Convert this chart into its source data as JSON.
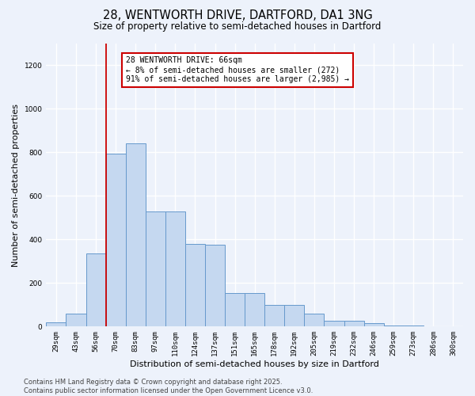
{
  "title_line1": "28, WENTWORTH DRIVE, DARTFORD, DA1 3NG",
  "title_line2": "Size of property relative to semi-detached houses in Dartford",
  "xlabel": "Distribution of semi-detached houses by size in Dartford",
  "ylabel": "Number of semi-detached properties",
  "categories": [
    "29sqm",
    "43sqm",
    "56sqm",
    "70sqm",
    "83sqm",
    "97sqm",
    "110sqm",
    "124sqm",
    "137sqm",
    "151sqm",
    "165sqm",
    "178sqm",
    "192sqm",
    "205sqm",
    "219sqm",
    "232sqm",
    "246sqm",
    "259sqm",
    "273sqm",
    "286sqm",
    "300sqm"
  ],
  "values": [
    20,
    60,
    335,
    795,
    840,
    530,
    530,
    380,
    375,
    155,
    155,
    100,
    100,
    60,
    25,
    25,
    15,
    5,
    5,
    2,
    2
  ],
  "bar_color": "#c5d8f0",
  "bar_edge_color": "#6699cc",
  "annotation_text": "28 WENTWORTH DRIVE: 66sqm\n← 8% of semi-detached houses are smaller (272)\n91% of semi-detached houses are larger (2,985) →",
  "vline_x": 3,
  "vline_color": "#cc0000",
  "annotation_box_facecolor": "#ffffff",
  "annotation_box_edgecolor": "#cc0000",
  "background_color": "#edf2fb",
  "grid_color": "#ffffff",
  "ylim": [
    0,
    1300
  ],
  "yticks": [
    0,
    200,
    400,
    600,
    800,
    1000,
    1200
  ],
  "footer": "Contains HM Land Registry data © Crown copyright and database right 2025.\nContains public sector information licensed under the Open Government Licence v3.0.",
  "title_fontsize": 10.5,
  "subtitle_fontsize": 8.5,
  "ylabel_fontsize": 8,
  "xlabel_fontsize": 8,
  "tick_fontsize": 6.5,
  "annotation_fontsize": 7,
  "footer_fontsize": 6
}
